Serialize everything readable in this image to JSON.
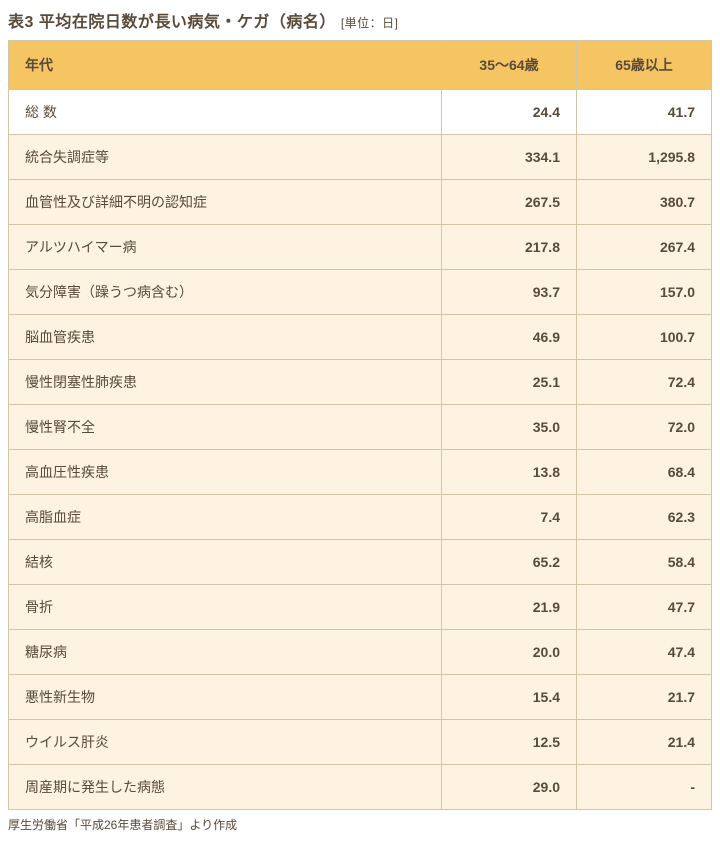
{
  "title": {
    "prefix": "表3",
    "main": "平均在院日数が長い病気・ケガ（病名）",
    "unit": "[単位：日]"
  },
  "columns": [
    "年代",
    "35〜64歳",
    "65歳以上"
  ],
  "rows": [
    {
      "label": "総 数",
      "col1": "24.4",
      "col2": "41.7",
      "isTotal": true
    },
    {
      "label": "統合失調症等",
      "col1": "334.1",
      "col2": "1,295.8"
    },
    {
      "label": "血管性及び詳細不明の認知症",
      "col1": "267.5",
      "col2": "380.7"
    },
    {
      "label": "アルツハイマー病",
      "col1": "217.8",
      "col2": "267.4"
    },
    {
      "label": "気分障害（躁うつ病含む）",
      "col1": "93.7",
      "col2": "157.0"
    },
    {
      "label": "脳血管疾患",
      "col1": "46.9",
      "col2": "100.7"
    },
    {
      "label": "慢性閉塞性肺疾患",
      "col1": "25.1",
      "col2": "72.4"
    },
    {
      "label": "慢性腎不全",
      "col1": "35.0",
      "col2": "72.0"
    },
    {
      "label": "高血圧性疾患",
      "col1": "13.8",
      "col2": "68.4"
    },
    {
      "label": "高脂血症",
      "col1": "7.4",
      "col2": "62.3"
    },
    {
      "label": "結核",
      "col1": "65.2",
      "col2": "58.4"
    },
    {
      "label": "骨折",
      "col1": "21.9",
      "col2": "47.7"
    },
    {
      "label": "糖尿病",
      "col1": "20.0",
      "col2": "47.4"
    },
    {
      "label": "悪性新生物",
      "col1": "15.4",
      "col2": "21.7"
    },
    {
      "label": "ウイルス肝炎",
      "col1": "12.5",
      "col2": "21.4"
    },
    {
      "label": "周産期に発生した病態",
      "col1": "29.0",
      "col2": "-"
    }
  ],
  "source": "厚生労働省「平成26年患者調査」より作成",
  "colors": {
    "header_bg": "#f5c563",
    "row_bg": "#fdf3e0",
    "border": "#d4c4a8",
    "text": "#5a4a3a"
  }
}
